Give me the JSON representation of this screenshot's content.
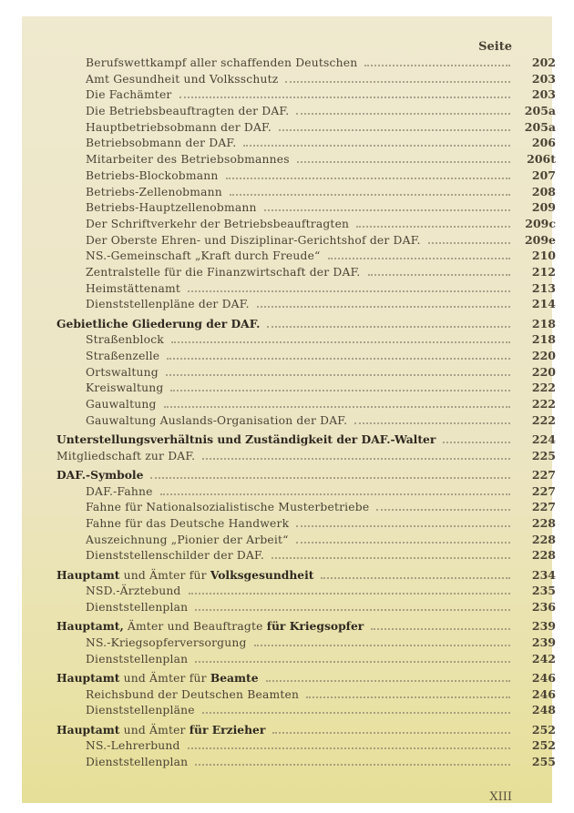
{
  "header": {
    "page_label": "Seite"
  },
  "entries": [
    {
      "level": 1,
      "parts": [
        {
          "t": "Berufswettkampf aller schaffenden Deutschen",
          "b": false
        }
      ],
      "page": "202"
    },
    {
      "level": 1,
      "parts": [
        {
          "t": "Amt Gesundheit und Volksschutz",
          "b": false
        }
      ],
      "page": "203"
    },
    {
      "level": 1,
      "parts": [
        {
          "t": "Die Fachämter",
          "b": false
        }
      ],
      "page": "203"
    },
    {
      "level": 1,
      "parts": [
        {
          "t": "Die Betriebsbeauftragten der DAF.",
          "b": false
        }
      ],
      "page": "205a"
    },
    {
      "level": 1,
      "parts": [
        {
          "t": "Hauptbetriebsobmann der DAF.",
          "b": false
        }
      ],
      "page": "205a"
    },
    {
      "level": 1,
      "parts": [
        {
          "t": "Betriebsobmann der DAF.",
          "b": false
        }
      ],
      "page": "206"
    },
    {
      "level": 1,
      "parts": [
        {
          "t": "Mitarbeiter des Betriebsobmannes",
          "b": false
        }
      ],
      "page": "206t"
    },
    {
      "level": 1,
      "parts": [
        {
          "t": "Betriebs-Blockobmann",
          "b": false
        }
      ],
      "page": "207"
    },
    {
      "level": 1,
      "parts": [
        {
          "t": "Betriebs-Zellenobmann",
          "b": false
        }
      ],
      "page": "208"
    },
    {
      "level": 1,
      "parts": [
        {
          "t": "Betriebs-Hauptzellenobmann",
          "b": false
        }
      ],
      "page": "209"
    },
    {
      "level": 1,
      "parts": [
        {
          "t": "Der Schriftverkehr der Betriebsbeauftragten",
          "b": false
        }
      ],
      "page": "209c"
    },
    {
      "level": 1,
      "parts": [
        {
          "t": "Der Oberste Ehren- und Disziplinar-Gerichtshof der DAF.",
          "b": false
        }
      ],
      "page": "209e"
    },
    {
      "level": 1,
      "parts": [
        {
          "t": "NS.-Gemeinschaft „Kraft durch Freude“",
          "b": false
        }
      ],
      "page": "210"
    },
    {
      "level": 1,
      "parts": [
        {
          "t": "Zentralstelle für die Finanzwirtschaft der DAF.",
          "b": false
        }
      ],
      "page": "212"
    },
    {
      "level": 1,
      "parts": [
        {
          "t": "Heimstättenamt",
          "b": false
        }
      ],
      "page": "213"
    },
    {
      "level": 1,
      "parts": [
        {
          "t": "Dienststellenpläne der DAF.",
          "b": false
        }
      ],
      "page": "214"
    },
    {
      "level": 0,
      "head": true,
      "parts": [
        {
          "t": "Gebietliche Gliederung der DAF.",
          "b": true
        }
      ],
      "page": "218"
    },
    {
      "level": 1,
      "parts": [
        {
          "t": "Straßenblock",
          "b": false
        }
      ],
      "page": "218"
    },
    {
      "level": 1,
      "parts": [
        {
          "t": "Straßenzelle",
          "b": false
        }
      ],
      "page": "220"
    },
    {
      "level": 1,
      "parts": [
        {
          "t": "Ortswaltung",
          "b": false
        }
      ],
      "page": "220"
    },
    {
      "level": 1,
      "parts": [
        {
          "t": "Kreiswaltung",
          "b": false
        }
      ],
      "page": "222"
    },
    {
      "level": 1,
      "parts": [
        {
          "t": "Gauwaltung",
          "b": false
        }
      ],
      "page": "222"
    },
    {
      "level": 1,
      "parts": [
        {
          "t": "Gauwaltung Auslands-Organisation der DAF.",
          "b": false
        }
      ],
      "page": "222"
    },
    {
      "level": 0,
      "head": true,
      "parts": [
        {
          "t": "Unterstellungsverhältnis und Zuständigkeit der DAF.-Walter",
          "b": true
        }
      ],
      "page": "224"
    },
    {
      "level": 0,
      "parts": [
        {
          "t": "Mitgliedschaft zur DAF.",
          "b": false
        }
      ],
      "page": "225"
    },
    {
      "level": 0,
      "head": true,
      "parts": [
        {
          "t": "DAF.-Symbole",
          "b": true
        }
      ],
      "page": "227"
    },
    {
      "level": 1,
      "parts": [
        {
          "t": "DAF.-Fahne",
          "b": false
        }
      ],
      "page": "227"
    },
    {
      "level": 1,
      "parts": [
        {
          "t": "Fahne für Nationalsozialistische Musterbetriebe",
          "b": false
        }
      ],
      "page": "227"
    },
    {
      "level": 1,
      "parts": [
        {
          "t": "Fahne für das Deutsche Handwerk",
          "b": false
        }
      ],
      "page": "228"
    },
    {
      "level": 1,
      "parts": [
        {
          "t": "Auszeichnung „Pionier der Arbeit“",
          "b": false
        }
      ],
      "page": "228"
    },
    {
      "level": 1,
      "parts": [
        {
          "t": "Dienststellenschilder der DAF.",
          "b": false
        }
      ],
      "page": "228"
    },
    {
      "level": 0,
      "head": true,
      "parts": [
        {
          "t": "Hauptamt",
          "b": true
        },
        {
          "t": " und Ämter für ",
          "b": false
        },
        {
          "t": "Volksgesundheit",
          "b": true
        }
      ],
      "page": "234"
    },
    {
      "level": 1,
      "parts": [
        {
          "t": "NSD.-Ärztebund",
          "b": false
        }
      ],
      "page": "235"
    },
    {
      "level": 1,
      "parts": [
        {
          "t": "Dienststellenplan",
          "b": false
        }
      ],
      "page": "236"
    },
    {
      "level": 0,
      "head": true,
      "parts": [
        {
          "t": "Hauptamt,",
          "b": true
        },
        {
          "t": " Ämter und Beauftragte ",
          "b": false
        },
        {
          "t": "für Kriegsopfer",
          "b": true
        }
      ],
      "page": "239"
    },
    {
      "level": 1,
      "parts": [
        {
          "t": "NS.-Kriegsopferversorgung",
          "b": false
        }
      ],
      "page": "239"
    },
    {
      "level": 1,
      "parts": [
        {
          "t": "Dienststellenplan",
          "b": false
        }
      ],
      "page": "242"
    },
    {
      "level": 0,
      "head": true,
      "parts": [
        {
          "t": "Hauptamt",
          "b": true
        },
        {
          "t": " und Ämter für ",
          "b": false
        },
        {
          "t": "Beamte",
          "b": true
        }
      ],
      "page": "246"
    },
    {
      "level": 1,
      "parts": [
        {
          "t": "Reichsbund der Deutschen Beamten",
          "b": false
        }
      ],
      "page": "246"
    },
    {
      "level": 1,
      "parts": [
        {
          "t": "Dienststellenpläne",
          "b": false
        }
      ],
      "page": "248"
    },
    {
      "level": 0,
      "head": true,
      "parts": [
        {
          "t": "Hauptamt",
          "b": true
        },
        {
          "t": " und Ämter ",
          "b": false
        },
        {
          "t": "für Erzieher",
          "b": true
        }
      ],
      "page": "252"
    },
    {
      "level": 1,
      "parts": [
        {
          "t": "NS.-Lehrerbund",
          "b": false
        }
      ],
      "page": "252"
    },
    {
      "level": 1,
      "parts": [
        {
          "t": "Dienststellenplan",
          "b": false
        }
      ],
      "page": "255"
    }
  ],
  "footer": {
    "folio": "XIII"
  }
}
